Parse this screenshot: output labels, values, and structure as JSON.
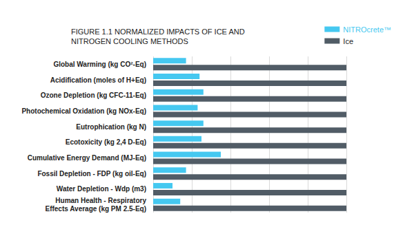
{
  "chart_data": {
    "type": "bar",
    "title": "FIGURE 1.1 NORMALIZED IMPACTS OF ICE AND\nNITROGEN COOLING METHODS",
    "orientation": "horizontal",
    "categories": [
      "Global Warming (kg CO²-Eq)",
      "Acidification (moles of H+Eq)",
      "Ozone Depletion (kg CFC-11-Eq)",
      "Photochemical Oxidation (kg NOx-Eq)",
      "Eutrophication (kg N)",
      "Ecotoxicity (kg 2,4 D-Eq)",
      "Cumulative Energy Demand (MJ-Eq)",
      "Fossil Depletion - FDP (kg oil-Eq)",
      "Water Depletion - Wdp (m3)",
      "Human Health - Respiratory\nEffects Average (kg PM 2.5-Eq)"
    ],
    "series": [
      {
        "name": "NITROcrete™",
        "color": "#45c8f0",
        "values": [
          17,
          24,
          26,
          23,
          26,
          25,
          35,
          17,
          10,
          14
        ]
      },
      {
        "name": "Ice",
        "color": "#515c66",
        "values": [
          100,
          100,
          100,
          100,
          100,
          100,
          100,
          100,
          100,
          100
        ]
      }
    ],
    "xlim": [
      0,
      100
    ],
    "xticks": [
      0,
      20,
      40,
      60,
      80,
      100
    ],
    "grid": true,
    "legend": "upper right",
    "tick_labels": "y"
  }
}
